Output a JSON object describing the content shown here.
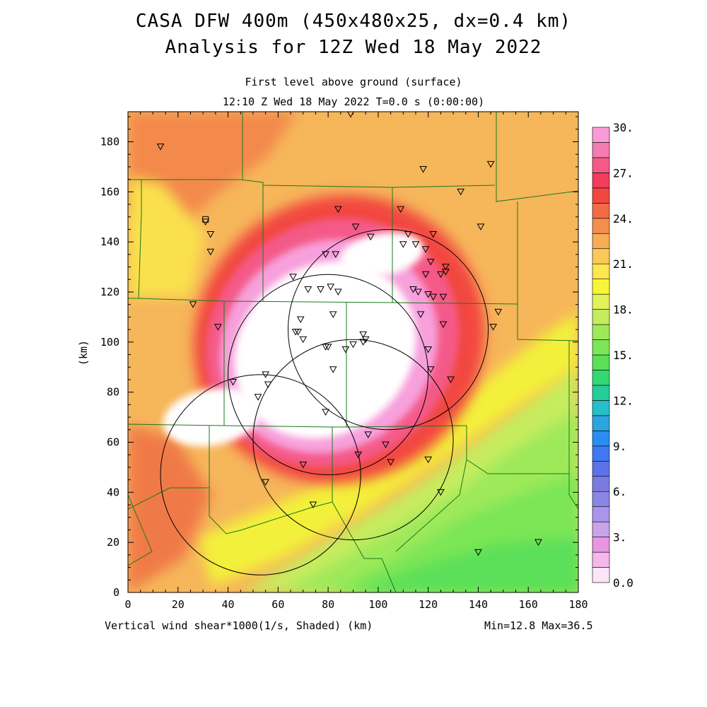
{
  "title_line1": "CASA DFW 400m (450x480x25, dx=0.4 km)",
  "title_line2": "Analysis for 12Z Wed 18 May 2022",
  "subtitle_line1": "First level above ground (surface)",
  "subtitle_line2": "12:10 Z Wed 18 May 2022   T=0.0 s (0:00:00)",
  "y_axis_label": "(km)",
  "x_axis_caption": "Vertical wind shear*1000(1/s, Shaded)  (km)",
  "min_max_label": "Min=12.8 Max=36.5",
  "x_ticks": [
    "0",
    "20",
    "40",
    "60",
    "80",
    "100",
    "120",
    "140",
    "160",
    "180"
  ],
  "y_ticks": [
    "0",
    "20",
    "40",
    "60",
    "80",
    "100",
    "120",
    "140",
    "160",
    "180"
  ],
  "colorbar": {
    "labels": [
      "0.0",
      "3.",
      "6.",
      "9.",
      "12.",
      "15.",
      "18.",
      "21.",
      "24.",
      "27.",
      "30."
    ],
    "colors": [
      "#fde4f8",
      "#f4b8ec",
      "#e895e4",
      "#c9a3e8",
      "#a995ec",
      "#8b86e6",
      "#7a7ae0",
      "#5d72e8",
      "#3f78f0",
      "#2c8df0",
      "#2ba4e0",
      "#24bfc8",
      "#26cc9a",
      "#34d873",
      "#5bdf58",
      "#7be656",
      "#9ee95a",
      "#c3ec5e",
      "#e2f05a",
      "#f7f536",
      "#fde64e",
      "#fbc95a",
      "#f7ad56",
      "#f38e4e",
      "#f26b46",
      "#f2473f",
      "#f03e5c",
      "#f45a88",
      "#f47cb0",
      "#fa9ad6"
    ]
  },
  "map": {
    "storm_core_color": "#ffffff",
    "background_color": "#f8c05a",
    "county_line_color": "#1a7a1a"
  },
  "radar_rings": [
    {
      "cx": 104,
      "cy": 105,
      "r": 40
    },
    {
      "cx": 80,
      "cy": 87,
      "r": 40
    },
    {
      "cx": 90,
      "cy": 61,
      "r": 40
    },
    {
      "cx": 53,
      "cy": 47,
      "r": 40
    }
  ],
  "stations": [
    [
      13,
      178
    ],
    [
      89,
      191
    ],
    [
      31,
      148
    ],
    [
      33,
      143
    ],
    [
      33,
      136
    ],
    [
      26,
      115
    ],
    [
      36,
      106
    ],
    [
      66,
      126
    ],
    [
      67,
      104
    ],
    [
      68,
      104
    ],
    [
      69,
      109
    ],
    [
      70,
      101
    ],
    [
      72,
      121
    ],
    [
      77,
      121
    ],
    [
      79,
      98
    ],
    [
      80,
      98
    ],
    [
      81,
      122
    ],
    [
      82,
      111
    ],
    [
      82,
      89
    ],
    [
      84,
      120
    ],
    [
      79,
      135
    ],
    [
      83,
      135
    ],
    [
      84,
      153
    ],
    [
      91,
      146
    ],
    [
      97,
      142
    ],
    [
      87,
      97
    ],
    [
      90,
      99
    ],
    [
      94,
      103
    ],
    [
      94,
      100
    ],
    [
      95,
      101
    ],
    [
      109,
      153
    ],
    [
      112,
      143
    ],
    [
      110,
      139
    ],
    [
      115,
      139
    ],
    [
      114,
      121
    ],
    [
      116,
      120
    ],
    [
      117,
      111
    ],
    [
      119,
      137
    ],
    [
      119,
      127
    ],
    [
      120,
      119
    ],
    [
      122,
      118
    ],
    [
      121,
      132
    ],
    [
      122,
      143
    ],
    [
      125,
      127
    ],
    [
      127,
      130
    ],
    [
      127,
      128
    ],
    [
      126,
      118
    ],
    [
      126,
      107
    ],
    [
      120,
      97
    ],
    [
      121,
      89
    ],
    [
      129,
      85
    ],
    [
      133,
      160
    ],
    [
      118,
      169
    ],
    [
      141,
      146
    ],
    [
      145,
      171
    ],
    [
      146,
      106
    ],
    [
      148,
      112
    ],
    [
      42,
      84
    ],
    [
      55,
      87
    ],
    [
      56,
      83
    ],
    [
      52,
      78
    ],
    [
      79,
      72
    ],
    [
      96,
      63
    ],
    [
      103,
      59
    ],
    [
      92,
      55
    ],
    [
      105,
      52
    ],
    [
      120,
      53
    ],
    [
      70,
      51
    ],
    [
      55,
      44
    ],
    [
      74,
      35
    ],
    [
      125,
      40
    ],
    [
      140,
      16
    ],
    [
      164,
      20
    ]
  ],
  "station_squares": [
    [
      31,
      149
    ]
  ]
}
